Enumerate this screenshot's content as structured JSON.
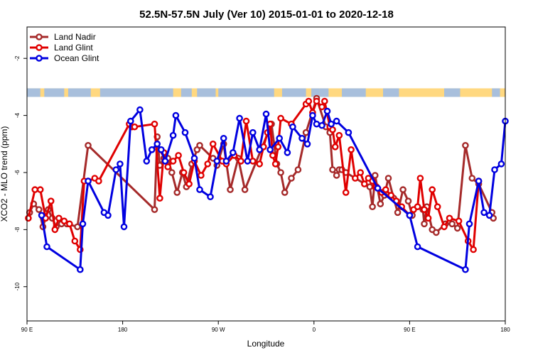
{
  "chart_data": {
    "type": "line",
    "title": "52.5N-57.5N July (Ver 10)   2015-01-01 to 2020-12-18",
    "xlabel": "Longitude",
    "ylabel": "XCO2 - MLO trend (ppm)",
    "xlim": [
      90,
      450
    ],
    "ylim": [
      -11.2,
      -0.9
    ],
    "x_ticks": [
      {
        "value": 90,
        "label": "90 E"
      },
      {
        "value": 162,
        "label": "180"
      },
      {
        "value": 234,
        "label": "90 W"
      },
      {
        "value": 306,
        "label": "0"
      },
      {
        "value": 378,
        "label": "90 E"
      },
      {
        "value": 450,
        "label": "180"
      }
    ],
    "y_ticks": [
      {
        "value": -2,
        "label": "-2"
      },
      {
        "value": -4,
        "label": "-4"
      },
      {
        "value": -6,
        "label": "-6"
      },
      {
        "value": -8,
        "label": "-8"
      },
      {
        "value": -10,
        "label": "-10"
      }
    ],
    "land_mask_band": {
      "y_range": [
        -3.35,
        -3.05
      ],
      "land_color": "#ffd880",
      "ocean_color": "#a8bfdc"
    },
    "legend_position": "top-left",
    "series": [
      {
        "name": "Land Nadir",
        "color": "#a52a2a",
        "x": [
          92,
          95,
          99,
          102,
          106,
          109,
          112,
          116,
          120,
          128,
          136,
          186,
          188,
          190,
          193,
          196,
          199,
          203,
          207,
          210,
          214,
          218,
          220,
          230,
          233,
          238,
          243,
          249,
          254,
          274,
          278,
          281,
          284,
          289,
          294,
          300,
          308,
          315,
          318,
          320,
          323,
          325,
          327,
          330,
          348,
          350,
          352,
          356,
          359,
          362,
          366,
          369,
          373,
          377,
          380,
          384,
          388,
          389,
          391,
          395,
          398,
          405,
          410,
          414,
          420,
          425,
          430,
          440,
          441
        ],
        "y": [
          -7.4,
          -7.1,
          -7.3,
          -7.9,
          -7.3,
          -7.6,
          -7.9,
          -7.8,
          -7.8,
          -7.9,
          -5.05,
          -7.3,
          -4.75,
          -5.75,
          -5.5,
          -5.5,
          -6.0,
          -6.7,
          -6.0,
          -6.5,
          -5.7,
          -5.2,
          -5.05,
          -5.5,
          -5.75,
          -5.0,
          -6.6,
          -5.5,
          -6.6,
          -4.3,
          -5.7,
          -6.0,
          -6.7,
          -6.2,
          -5.9,
          -4.6,
          -3.4,
          -4.4,
          -4.6,
          -5.9,
          -6.1,
          -5.9,
          -5.9,
          -6.0,
          -6.5,
          -7.2,
          -6.1,
          -7.1,
          -6.8,
          -6.2,
          -6.9,
          -7.4,
          -6.6,
          -7.0,
          -7.5,
          -7.2,
          -7.3,
          -7.8,
          -7.2,
          -8.0,
          -8.1,
          -7.8,
          -7.8,
          -7.95,
          -5.05,
          -6.2,
          -6.4,
          -7.4,
          -7.6
        ],
        "marker": "circle"
      },
      {
        "name": "Land Glint",
        "color": "#e00000",
        "x": [
          91,
          96,
          100,
          104,
          108,
          111,
          114,
          118,
          122,
          126,
          130,
          133,
          136,
          141,
          144,
          167,
          169,
          171,
          186,
          190,
          193,
          196,
          200,
          204,
          208,
          212,
          216,
          221,
          226,
          230,
          237,
          240,
          246,
          251,
          255,
          260,
          265,
          268,
          271,
          273,
          275,
          277,
          279,
          281,
          289,
          300,
          302,
          305,
          308,
          312,
          314,
          318,
          320,
          322,
          325,
          330,
          334,
          337,
          341,
          344,
          347,
          350,
          352,
          353,
          357,
          360,
          364,
          368,
          372,
          378,
          381,
          384,
          386,
          389,
          392,
          395,
          399,
          404,
          408,
          415,
          422,
          426,
          430
        ],
        "y": [
          -7.6,
          -6.6,
          -6.6,
          -7.6,
          -7.0,
          -8.0,
          -7.6,
          -7.7,
          -7.8,
          -8.4,
          -8.7,
          -6.3,
          -6.3,
          -6.2,
          -6.3,
          -4.3,
          -4.4,
          -4.4,
          -4.3,
          -6.9,
          -5.3,
          -5.8,
          -5.6,
          -5.4,
          -6.0,
          -6.4,
          -5.6,
          -6.1,
          -5.7,
          -5.0,
          -5.6,
          -5.7,
          -5.4,
          -5.6,
          -4.2,
          -5.6,
          -5.7,
          -5.1,
          -4.6,
          -4.3,
          -5.4,
          -5.7,
          -5.1,
          -4.1,
          -4.3,
          -3.6,
          -3.5,
          -3.9,
          -3.5,
          -3.7,
          -3.5,
          -4.4,
          -4.5,
          -5.1,
          -4.7,
          -6.7,
          -5.2,
          -6.2,
          -6.0,
          -6.4,
          -6.2,
          -6.3,
          -6.5,
          -6.5,
          -6.7,
          -6.6,
          -6.8,
          -7.0,
          -7.2,
          -7.5,
          -7.3,
          -7.2,
          -6.2,
          -7.3,
          -7.6,
          -6.6,
          -7.2,
          -7.9,
          -7.6,
          -7.7,
          -8.4,
          -8.7,
          -6.3
        ],
        "marker": "circle"
      },
      {
        "name": "Ocean Glint",
        "color": "#0000e0",
        "x": [
          101,
          105,
          130,
          132,
          136,
          148,
          151,
          157,
          160,
          163,
          168,
          175,
          180,
          184,
          188,
          191,
          194,
          200,
          202,
          209,
          216,
          220,
          228,
          233,
          238,
          240,
          245,
          250,
          256,
          260,
          265,
          270,
          273,
          280,
          286,
          290,
          297,
          301,
          305,
          308,
          312,
          316,
          319,
          323,
          332,
          354,
          378,
          384,
          420,
          423,
          430,
          434,
          438,
          442,
          447,
          450
        ],
        "y": [
          -7.5,
          -8.6,
          -9.4,
          -7.8,
          -6.3,
          -7.4,
          -7.5,
          -5.9,
          -5.7,
          -7.9,
          -4.2,
          -3.8,
          -5.6,
          -5.2,
          -5.0,
          -5.2,
          -5.6,
          -4.7,
          -4.0,
          -4.6,
          -5.5,
          -6.6,
          -6.85,
          -5.6,
          -4.8,
          -5.6,
          -5.3,
          -4.1,
          -5.6,
          -4.6,
          -5.2,
          -3.95,
          -5.2,
          -4.8,
          -5.3,
          -4.4,
          -4.8,
          -5.0,
          -4.0,
          -4.3,
          -4.35,
          -3.85,
          -4.3,
          -4.2,
          -4.6,
          -6.55,
          -7.5,
          -8.6,
          -9.4,
          -7.8,
          -6.3,
          -7.4,
          -7.5,
          -5.9,
          -5.7,
          -4.2
        ],
        "marker": "circle"
      }
    ]
  }
}
